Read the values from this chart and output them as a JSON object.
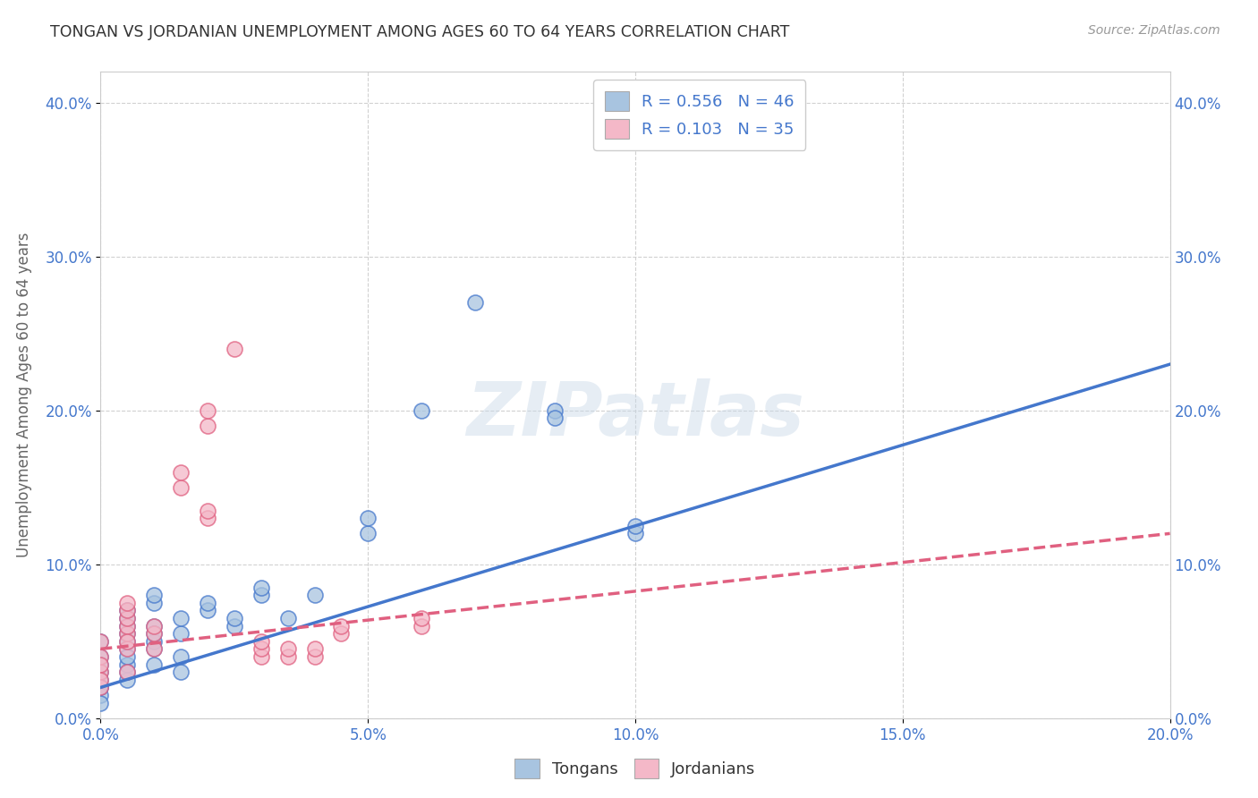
{
  "title": "TONGAN VS JORDANIAN UNEMPLOYMENT AMONG AGES 60 TO 64 YEARS CORRELATION CHART",
  "source": "Source: ZipAtlas.com",
  "ylabel": "Unemployment Among Ages 60 to 64 years",
  "xlabel": "",
  "xlim": [
    0.0,
    0.2
  ],
  "ylim": [
    0.0,
    0.42
  ],
  "xticks": [
    0.0,
    0.05,
    0.1,
    0.15,
    0.2
  ],
  "yticks": [
    0.0,
    0.1,
    0.2,
    0.3,
    0.4
  ],
  "background_color": "#ffffff",
  "grid_color": "#cccccc",
  "watermark": "ZIPatlas",
  "tongan_color": "#a8c4e0",
  "jordanian_color": "#f4b8c8",
  "tongan_line_color": "#4477cc",
  "jordanian_line_color": "#e06080",
  "R_tongan": 0.556,
  "N_tongan": 46,
  "R_jordanian": 0.103,
  "N_jordanian": 35,
  "tongan_points": [
    [
      0.0,
      0.02
    ],
    [
      0.0,
      0.03
    ],
    [
      0.0,
      0.04
    ],
    [
      0.0,
      0.05
    ],
    [
      0.0,
      0.025
    ],
    [
      0.0,
      0.035
    ],
    [
      0.0,
      0.015
    ],
    [
      0.005,
      0.045
    ],
    [
      0.005,
      0.055
    ],
    [
      0.005,
      0.06
    ],
    [
      0.005,
      0.05
    ],
    [
      0.005,
      0.035
    ],
    [
      0.005,
      0.04
    ],
    [
      0.005,
      0.065
    ],
    [
      0.005,
      0.07
    ],
    [
      0.01,
      0.05
    ],
    [
      0.01,
      0.06
    ],
    [
      0.01,
      0.075
    ],
    [
      0.01,
      0.08
    ],
    [
      0.01,
      0.055
    ],
    [
      0.01,
      0.045
    ],
    [
      0.015,
      0.055
    ],
    [
      0.015,
      0.065
    ],
    [
      0.015,
      0.04
    ],
    [
      0.02,
      0.07
    ],
    [
      0.02,
      0.075
    ],
    [
      0.025,
      0.06
    ],
    [
      0.025,
      0.065
    ],
    [
      0.03,
      0.08
    ],
    [
      0.03,
      0.085
    ],
    [
      0.035,
      0.065
    ],
    [
      0.04,
      0.08
    ],
    [
      0.05,
      0.12
    ],
    [
      0.05,
      0.13
    ],
    [
      0.06,
      0.2
    ],
    [
      0.07,
      0.27
    ],
    [
      0.085,
      0.2
    ],
    [
      0.085,
      0.195
    ],
    [
      0.1,
      0.12
    ],
    [
      0.1,
      0.125
    ],
    [
      0.0,
      0.01
    ],
    [
      0.0,
      0.02
    ],
    [
      0.005,
      0.025
    ],
    [
      0.005,
      0.03
    ],
    [
      0.01,
      0.035
    ],
    [
      0.015,
      0.03
    ]
  ],
  "jordanian_points": [
    [
      0.0,
      0.03
    ],
    [
      0.0,
      0.04
    ],
    [
      0.0,
      0.05
    ],
    [
      0.0,
      0.035
    ],
    [
      0.005,
      0.045
    ],
    [
      0.005,
      0.055
    ],
    [
      0.005,
      0.06
    ],
    [
      0.005,
      0.065
    ],
    [
      0.005,
      0.07
    ],
    [
      0.005,
      0.075
    ],
    [
      0.005,
      0.05
    ],
    [
      0.01,
      0.045
    ],
    [
      0.01,
      0.055
    ],
    [
      0.01,
      0.06
    ],
    [
      0.015,
      0.15
    ],
    [
      0.015,
      0.16
    ],
    [
      0.02,
      0.13
    ],
    [
      0.02,
      0.135
    ],
    [
      0.02,
      0.19
    ],
    [
      0.02,
      0.2
    ],
    [
      0.025,
      0.24
    ],
    [
      0.03,
      0.04
    ],
    [
      0.03,
      0.045
    ],
    [
      0.03,
      0.05
    ],
    [
      0.035,
      0.04
    ],
    [
      0.035,
      0.045
    ],
    [
      0.04,
      0.04
    ],
    [
      0.04,
      0.045
    ],
    [
      0.045,
      0.055
    ],
    [
      0.045,
      0.06
    ],
    [
      0.06,
      0.06
    ],
    [
      0.06,
      0.065
    ],
    [
      0.0,
      0.02
    ],
    [
      0.0,
      0.025
    ],
    [
      0.005,
      0.03
    ]
  ],
  "tongan_reg": [
    0.0,
    0.2,
    0.02,
    0.23
  ],
  "jordanian_reg": [
    0.0,
    0.2,
    0.045,
    0.12
  ]
}
